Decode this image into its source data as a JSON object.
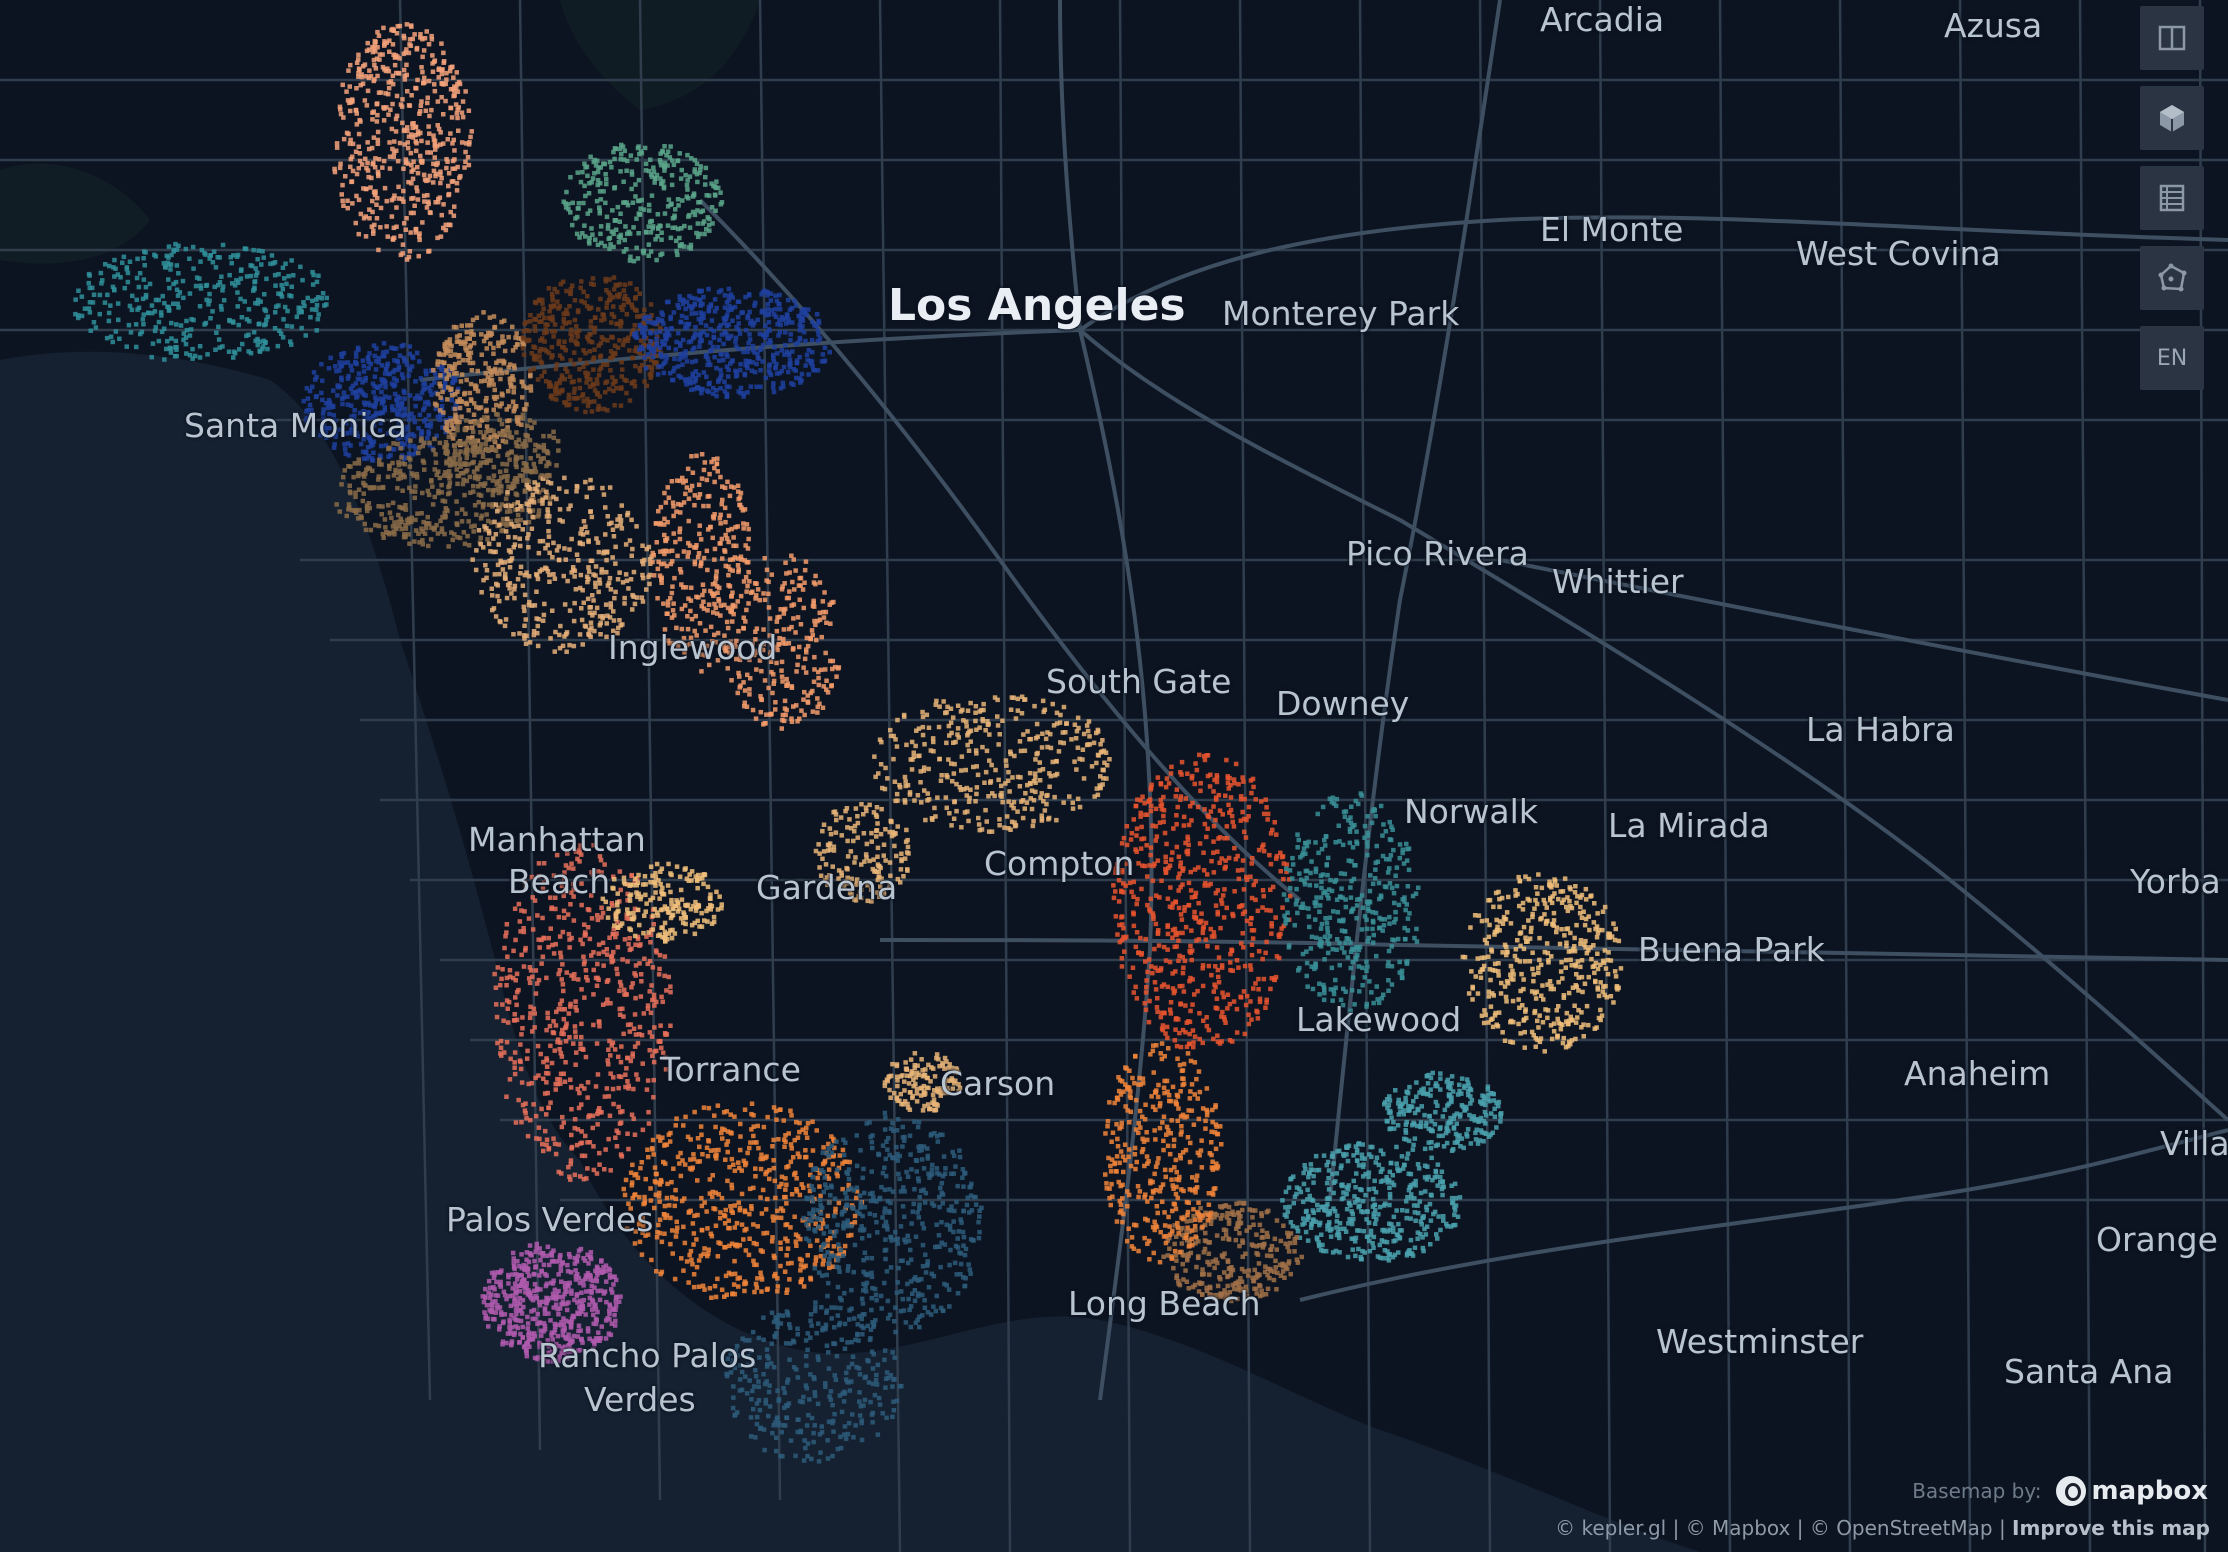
{
  "map": {
    "cities": [
      {
        "name": "Los Angeles",
        "major": true
      },
      {
        "name": "Arcadia"
      },
      {
        "name": "Azusa"
      },
      {
        "name": "El Monte"
      },
      {
        "name": "West Covina"
      },
      {
        "name": "Monterey Park"
      },
      {
        "name": "Santa Monica"
      },
      {
        "name": "Pico Rivera"
      },
      {
        "name": "Whittier"
      },
      {
        "name": "Inglewood"
      },
      {
        "name": "South Gate"
      },
      {
        "name": "Downey"
      },
      {
        "name": "La Habra"
      },
      {
        "name": "Norwalk"
      },
      {
        "name": "La Mirada"
      },
      {
        "name": "Manhattan"
      },
      {
        "name": "Beach"
      },
      {
        "name": "Gardena"
      },
      {
        "name": "Compton"
      },
      {
        "name": "Yorba"
      },
      {
        "name": "Buena Park"
      },
      {
        "name": "Lakewood"
      },
      {
        "name": "Torrance"
      },
      {
        "name": "Carson"
      },
      {
        "name": "Anaheim"
      },
      {
        "name": "Villa"
      },
      {
        "name": "Palos Verdes"
      },
      {
        "name": "Orange"
      },
      {
        "name": "Long Beach"
      },
      {
        "name": "Westminster"
      },
      {
        "name": "Santa Ana"
      },
      {
        "name": "Rancho Palos"
      },
      {
        "name": "Verdes"
      }
    ],
    "clusters": [
      {
        "color": "#f5a27a"
      },
      {
        "color": "#5ba58a"
      },
      {
        "color": "#2f8f9a"
      },
      {
        "color": "#1f3f9e"
      },
      {
        "color": "#c48c5a"
      },
      {
        "color": "#6b3a1a"
      },
      {
        "color": "#8a6b48"
      },
      {
        "color": "#e8b079"
      },
      {
        "color": "#f59b6a"
      },
      {
        "color": "#e8b477"
      },
      {
        "color": "#e8532e"
      },
      {
        "color": "#3a8f96"
      },
      {
        "color": "#f0be7a"
      },
      {
        "color": "#e8705a"
      },
      {
        "color": "#f0843a"
      },
      {
        "color": "#2d5a7a"
      },
      {
        "color": "#b05aae"
      },
      {
        "color": "#4aa0ad"
      },
      {
        "color": "#a07048"
      }
    ]
  },
  "controls": {
    "split_icon": "split-map-icon",
    "view3d_icon": "3d-view-icon",
    "legend_icon": "legend-icon",
    "draw_icon": "draw-polygon-icon",
    "lang_label": "EN"
  },
  "attribution": {
    "basemap_label": "Basemap by:",
    "mapbox_label": "mapbox",
    "text": "© kepler.gl | © Mapbox | © OpenStreetMap |",
    "improve": "Improve this map"
  }
}
